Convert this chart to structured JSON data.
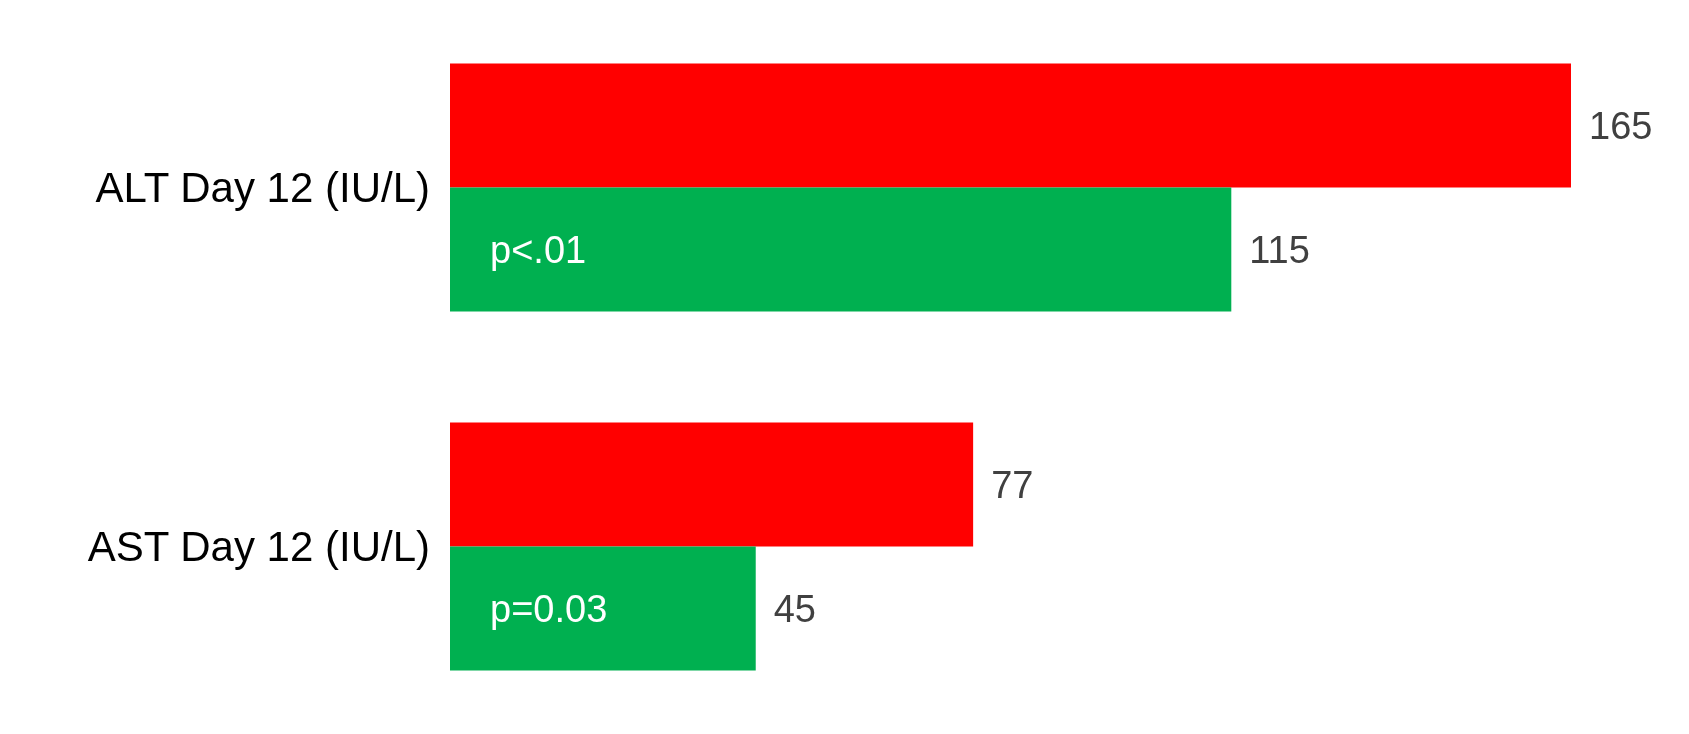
{
  "chart_data": {
    "type": "bar",
    "orientation": "horizontal",
    "categories": [
      "ALT Day 12 (IU/L)",
      "AST Day 12 (IU/L)"
    ],
    "series": [
      {
        "color": "#ff0000",
        "values": [
          165,
          77
        ]
      },
      {
        "color": "#00b050",
        "values": [
          115,
          45
        ]
      }
    ],
    "data_labels": true,
    "annotations": [
      {
        "text": "p<.01",
        "y": "ALT Day 12 (IU/L)"
      },
      {
        "text": "p=0.03",
        "y": "AST Day 12 (IU/L)"
      }
    ]
  }
}
